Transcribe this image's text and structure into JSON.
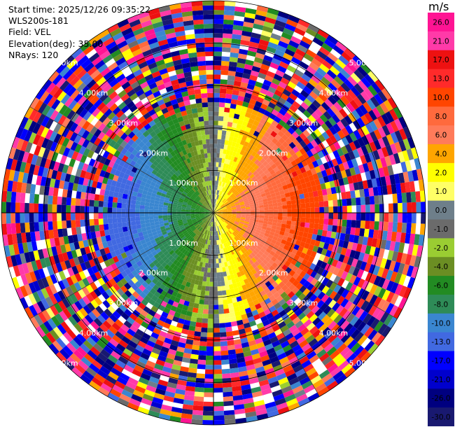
{
  "info": {
    "start_time": "Start time: 2025/12/26 09:35:22",
    "site": "WLS200s-181",
    "field": "Field: VEL",
    "elevation": "Elevation(deg): 35.00",
    "nrays": "NRays: 120"
  },
  "colorbar": {
    "unit": "m/s",
    "labels": [
      "26.0",
      "21.0",
      "17.0",
      "13.0",
      "10.0",
      "8.0",
      "6.0",
      "4.0",
      "2.0",
      "1.0",
      "0.0",
      "-1.0",
      "-2.0",
      "-4.0",
      "-6.0",
      "-8.0",
      "-10.0",
      "-13.0",
      "-17.0",
      "-21.0",
      "-26.0",
      "-30.0"
    ],
    "colors": [
      "#ff1493",
      "#ff3aa8",
      "#ee1111",
      "#ff2a2a",
      "#ff4500",
      "#ff6a3d",
      "#ff7b5a",
      "#ffa500",
      "#ffff00",
      "#ffff66",
      "#6e7f8a",
      "#6b6b6b",
      "#9acd32",
      "#6b8e23",
      "#228b22",
      "#2e8b57",
      "#3a86d0",
      "#4169e1",
      "#0000ff",
      "#0000cd",
      "#000080",
      "#191970"
    ]
  },
  "chart_data": {
    "type": "heatmap",
    "projection": "polar PPI",
    "field": "VEL",
    "units": "m/s",
    "nrays": 120,
    "elevation_deg": 35.0,
    "range_rings_km": [
      1.0,
      2.0,
      3.0,
      4.0,
      5.0
    ],
    "ring_labels": [
      "1.00km",
      "2.00km",
      "3.00km",
      "4.00km",
      "5.00km"
    ],
    "max_range_km": 5.0,
    "color_scale": [
      -30,
      -26,
      -21,
      -17,
      -13,
      -10,
      -8,
      -6,
      -4,
      -2,
      -1,
      0,
      1,
      2,
      4,
      6,
      8,
      10,
      13,
      17,
      21,
      26
    ],
    "wind_pattern": {
      "inner_range_km": 2.6,
      "approach_direction": "west",
      "recede_direction": "east",
      "outer_region": "noise"
    }
  }
}
